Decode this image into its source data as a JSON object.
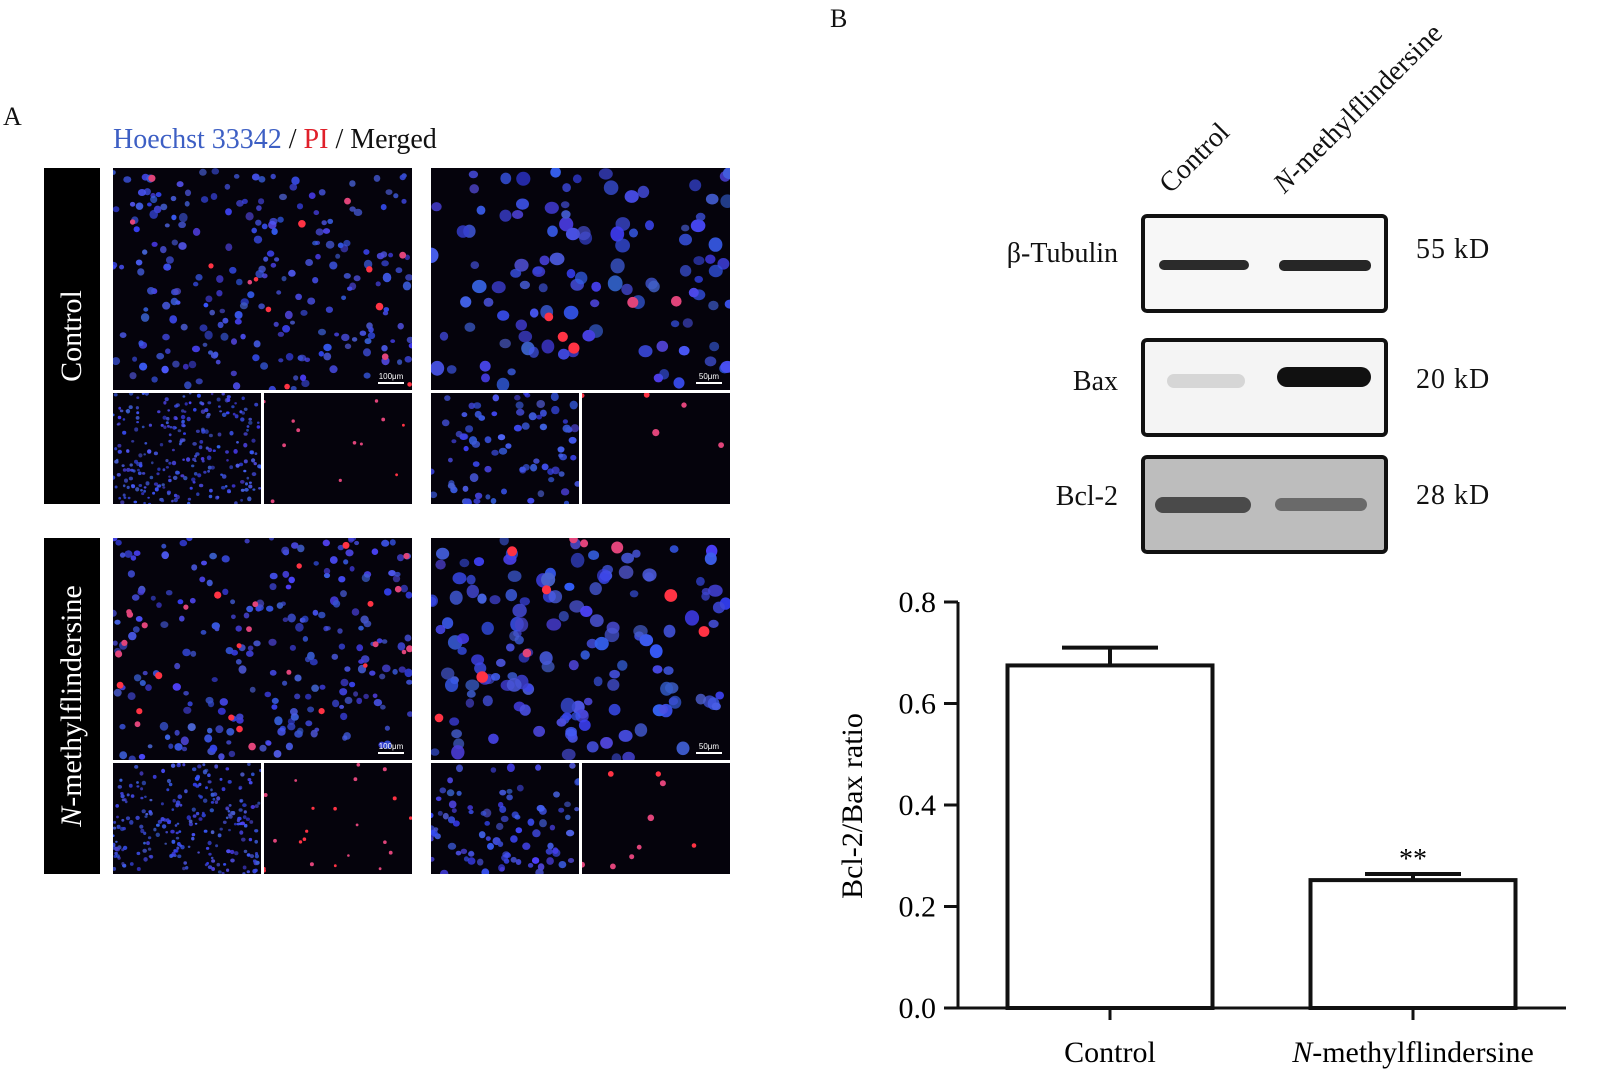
{
  "panel_a": {
    "letter": "A",
    "legend": {
      "stain1": "Hoechst 33342",
      "sep1": " / ",
      "stain2": "PI",
      "sep2": " / ",
      "stain3": "Merged"
    },
    "colors": {
      "hoechst": "#3d5fc4",
      "pi": "#e0202a",
      "merged": "#111111"
    },
    "rows": [
      {
        "label": "Control",
        "scale_left": "100μm",
        "scale_right": "50μm"
      },
      {
        "label_prefix": "N",
        "label_rest": "-methylflindersine",
        "scale_left": "100μm",
        "scale_right": "50μm"
      }
    ]
  },
  "panel_b": {
    "letter": "B",
    "lanes": {
      "lane1": "Control",
      "lane2_prefix": "N",
      "lane2_rest": "-methylflindersine"
    },
    "blots": [
      {
        "protein": "β-Tubulin",
        "size": "55 kD"
      },
      {
        "protein": "Bax",
        "size": "20 kD"
      },
      {
        "protein": "Bcl-2",
        "size": "28 kD"
      }
    ]
  },
  "chart_data": {
    "type": "bar",
    "categories": [
      "Control",
      "N-methylflindersine"
    ],
    "values": [
      0.675,
      0.252
    ],
    "error": [
      0.035,
      0.012
    ],
    "significance": [
      "",
      "**"
    ],
    "ylabel": "Bcl-2/Bax ratio",
    "ylim": [
      0,
      0.8
    ],
    "yticks": [
      "0.0",
      "0.2",
      "0.4",
      "0.6",
      "0.8"
    ],
    "grid": false
  }
}
